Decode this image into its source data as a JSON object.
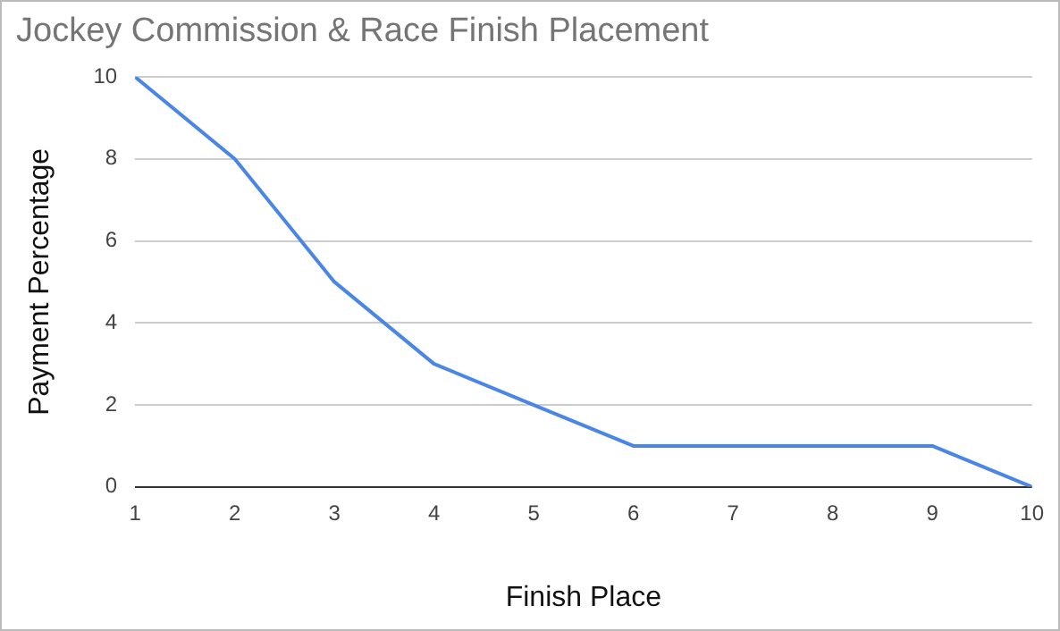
{
  "chart_data": {
    "type": "line",
    "title": "Jockey Commission & Race Finish Placement",
    "xlabel": "Finish Place",
    "ylabel": "Payment Percentage",
    "x": [
      1,
      2,
      3,
      4,
      5,
      6,
      7,
      8,
      9,
      10
    ],
    "series": [
      {
        "color": "#4a86e8",
        "values": [
          10,
          8,
          5,
          3,
          2,
          1,
          1,
          1,
          1,
          0
        ]
      }
    ],
    "xlim": [
      1,
      10
    ],
    "xticks": [
      1,
      2,
      3,
      4,
      5,
      6,
      7,
      8,
      9,
      10
    ],
    "ylim": [
      0,
      10
    ],
    "yticks": [
      0,
      2,
      4,
      6,
      8,
      10
    ],
    "grid": "y",
    "legend": false,
    "marker": "none",
    "line_style": "solid"
  }
}
